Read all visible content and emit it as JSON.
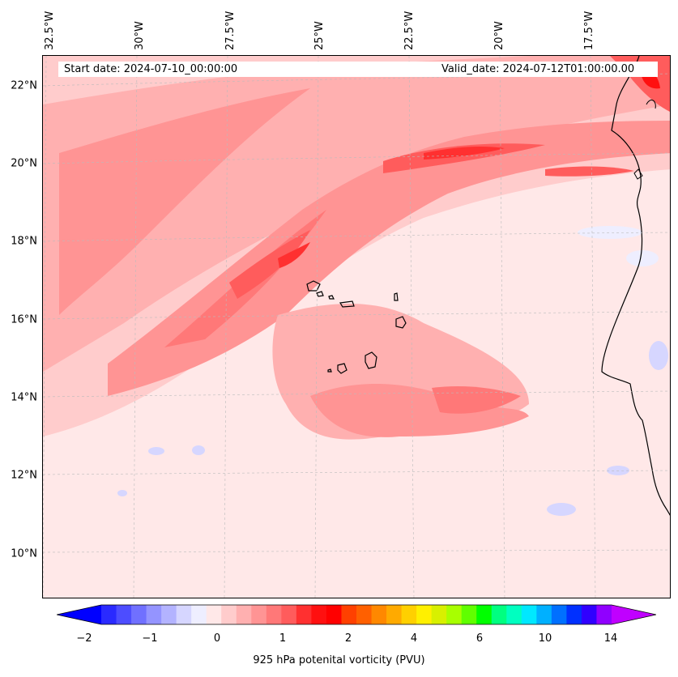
{
  "info": {
    "start_date": "Start date: 2024-07-10_00:00:00",
    "valid_date": "Valid_date: 2024-07-12T01:00:00.00"
  },
  "axes": {
    "lat_labels": [
      "22°N",
      "20°N",
      "18°N",
      "16°N",
      "14°N",
      "12°N",
      "10°N"
    ],
    "lon_labels": [
      "32.5°W",
      "30°W",
      "27.5°W",
      "25°W",
      "22.5°W",
      "20°W",
      "17.5°W"
    ]
  },
  "colorbar": {
    "title": "925 hPa potenital vorticity (PVU)",
    "tick_labels": [
      "−2",
      "−1",
      "0",
      "1",
      "2",
      "4",
      "6",
      "10",
      "14"
    ],
    "colors": [
      "#0000ff",
      "#2a2aff",
      "#4d4dff",
      "#7070ff",
      "#9494ff",
      "#b3b3ff",
      "#d6d6ff",
      "#eeeeff",
      "#ffe8e8",
      "#ffcccc",
      "#ffb0b0",
      "#ff9494",
      "#ff7878",
      "#ff5c5c",
      "#ff3030",
      "#ff1010",
      "#ff0000",
      "#ff4000",
      "#ff6000",
      "#ff8800",
      "#ffaa00",
      "#ffd000",
      "#fff000",
      "#d8f000",
      "#a8ff00",
      "#60ff00",
      "#00ff00",
      "#00ff80",
      "#00ffc0",
      "#00e8ff",
      "#00b0ff",
      "#0070ff",
      "#0030ff",
      "#3000ff",
      "#9000ff",
      "#c000ff"
    ]
  },
  "map": {
    "background": "#ffe8e8",
    "islands": [
      "Cape Verde Islands"
    ],
    "coastline": "West Africa"
  }
}
